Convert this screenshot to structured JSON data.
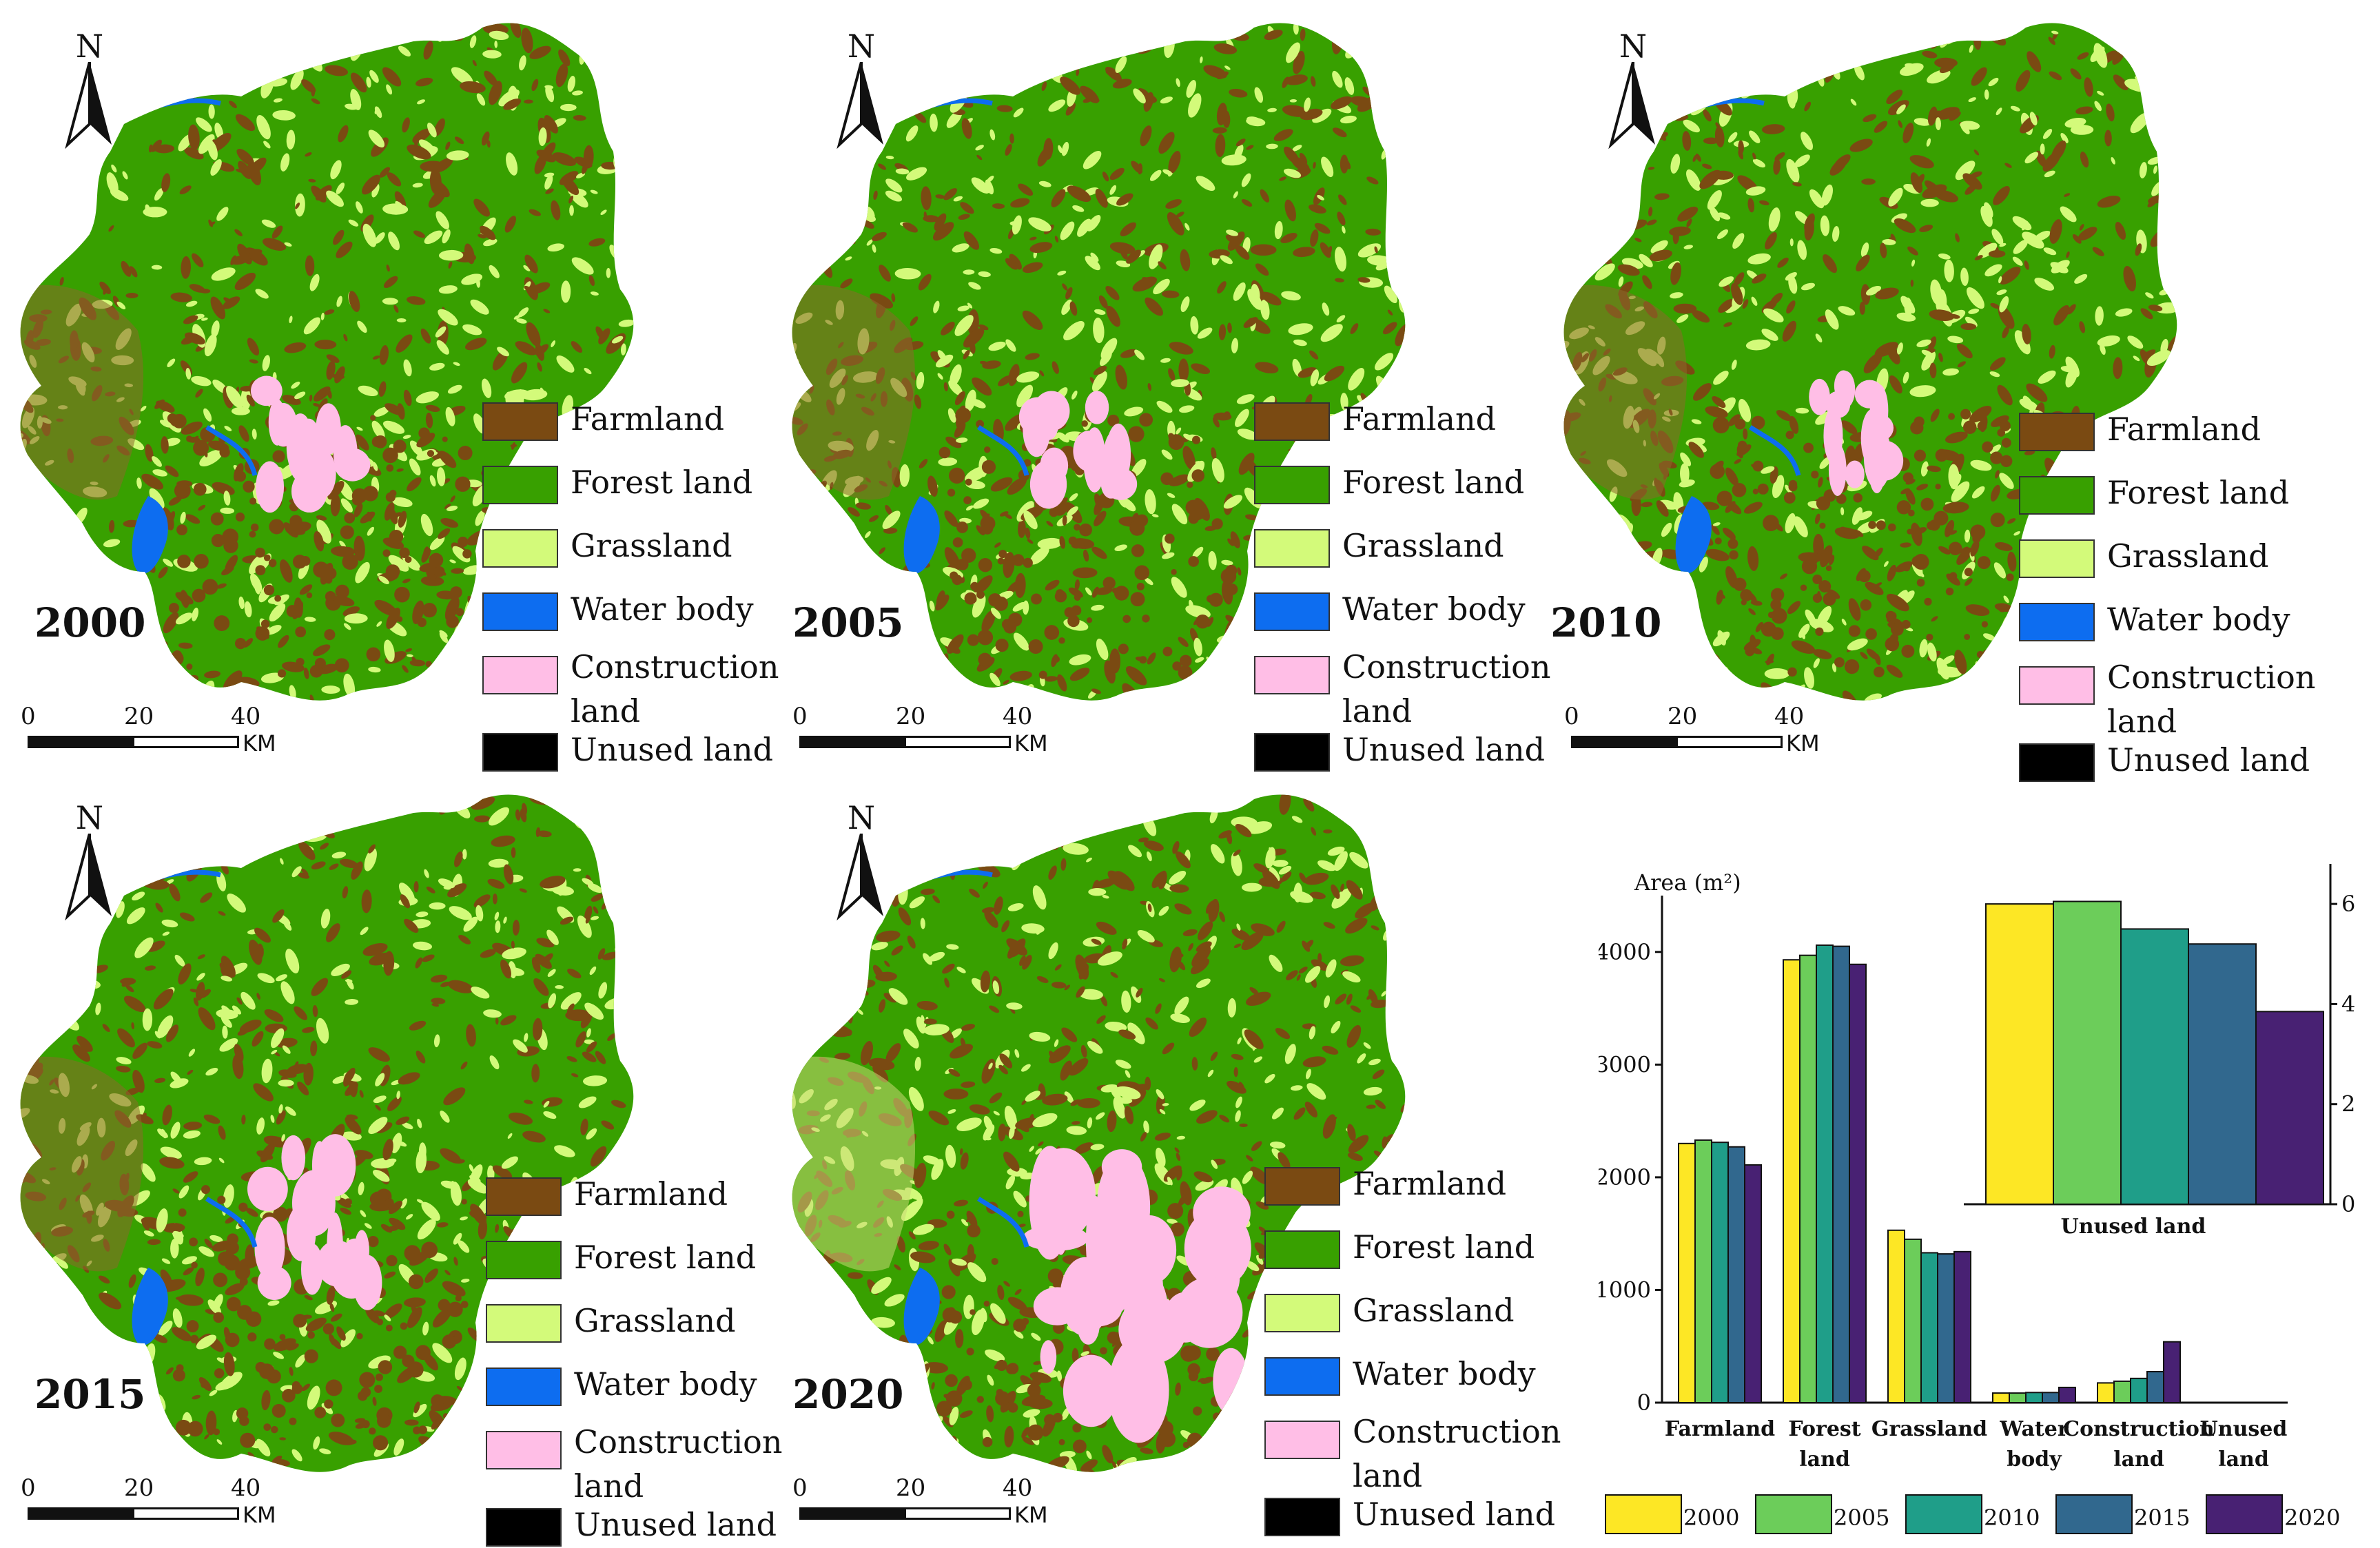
{
  "legend_title": "",
  "legend": [
    {
      "label": "Farmland",
      "color": "#7a4a12"
    },
    {
      "label": "Forest land",
      "color": "#38a000"
    },
    {
      "label": "Grassland",
      "color": "#d3fa7a"
    },
    {
      "label": "Water body",
      "color": "#0d6df0"
    },
    {
      "label": "Construction land",
      "color": "#ffbee6"
    },
    {
      "label": "Unused land",
      "color": "#000000"
    }
  ],
  "north_label": "N",
  "scale": {
    "ticks": [
      "0",
      "20",
      "40"
    ],
    "unit": "KM"
  },
  "maps": [
    {
      "year": "2000"
    },
    {
      "year": "2005"
    },
    {
      "year": "2010"
    },
    {
      "year": "2015"
    },
    {
      "year": "2020"
    }
  ],
  "chart_data": {
    "type": "bar",
    "ylabel": "Area (m²)",
    "categories": [
      "Farmland",
      "Forest land",
      "Grassland",
      "Water body",
      "Construction land",
      "Unused land"
    ],
    "ylim": [
      0,
      4500
    ],
    "yticks": [
      "0",
      "1000",
      "2000",
      "3000",
      "4000"
    ],
    "series": [
      {
        "name": "2000",
        "color": "#fde725",
        "values": [
          2300,
          3930,
          1530,
          85,
          175,
          6.0
        ]
      },
      {
        "name": "2005",
        "color": "#6ccd5a",
        "values": [
          2330,
          3970,
          1450,
          85,
          190,
          6.05
        ]
      },
      {
        "name": "2010",
        "color": "#1f9e89",
        "values": [
          2310,
          4060,
          1330,
          90,
          215,
          5.5
        ]
      },
      {
        "name": "2015",
        "color": "#31688e",
        "values": [
          2270,
          4050,
          1320,
          90,
          275,
          5.2
        ]
      },
      {
        "name": "2020",
        "color": "#482173",
        "values": [
          2110,
          3890,
          1340,
          135,
          540,
          3.85
        ]
      }
    ],
    "inset": {
      "category": "Unused land",
      "ylim": [
        0,
        6.8
      ],
      "yticks": [
        "0",
        "2",
        "4",
        "6"
      ]
    }
  }
}
